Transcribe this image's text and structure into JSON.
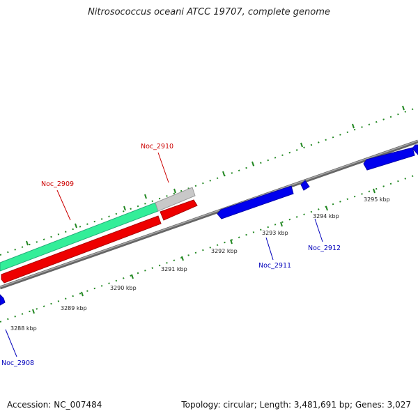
{
  "title": "Nitrosococcus oceani ATCC 19707, complete genome",
  "accession": "Accession: NC_007484",
  "topology": "Topology: circular; Length: 3,481,691 bp; Genes: 3,027",
  "scale_labels": [
    "3288 kbp",
    "3289 kbp",
    "3290 kbp",
    "3291 kbp",
    "3292 kbp",
    "3293 kbp",
    "3294 kbp",
    "3295 kbp"
  ],
  "gene_labels": {
    "noc_2908": "Noc_2908",
    "noc_2909": "Noc_2909",
    "noc_2910": "Noc_2910",
    "noc_2911": "Noc_2911",
    "noc_2912": "Noc_2912"
  },
  "colors": {
    "forward_gene": "#ee0000",
    "reverse_gene": "#0000ee",
    "rna_feature": "#33ee99",
    "pseudo_feature": "#bbbbbb",
    "backbone": "#888888",
    "ticks": "#228822",
    "label_forward": "#cc0000",
    "label_reverse": "#0000bb"
  }
}
